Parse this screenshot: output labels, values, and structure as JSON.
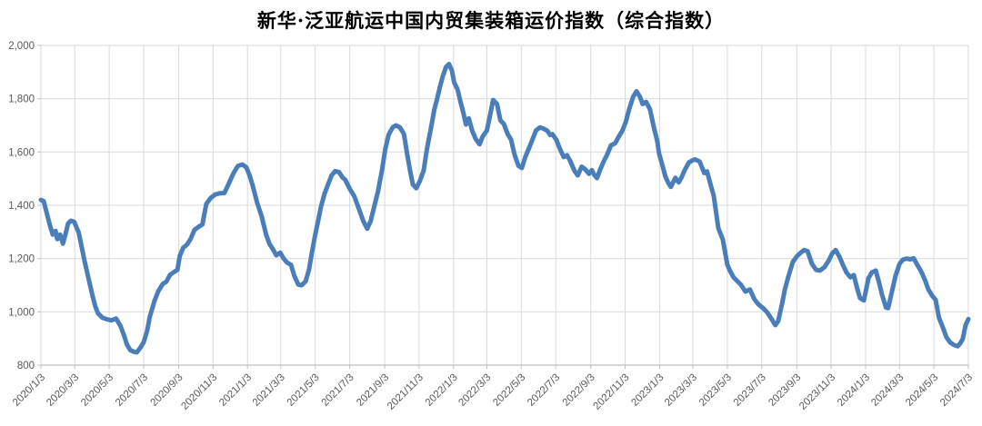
{
  "chart_data": {
    "type": "line",
    "title": "新华·泛亚航运中国内贸集装箱运价指数（综合指数）",
    "xlabel": "",
    "ylabel": "",
    "ylim": [
      800,
      2000
    ],
    "grid": true,
    "legend": "none",
    "line_color": "#4a7ebb",
    "gridline_color": "#d9d9d9",
    "axis_label_color": "#595959",
    "y_ticks": [
      {
        "value": 800,
        "label": "800"
      },
      {
        "value": 1000,
        "label": "1,000"
      },
      {
        "value": 1200,
        "label": "1,200"
      },
      {
        "value": 1400,
        "label": "1,400"
      },
      {
        "value": 1600,
        "label": "1,600"
      },
      {
        "value": 1800,
        "label": "1,800"
      },
      {
        "value": 2000,
        "label": "2,000"
      }
    ],
    "x_tick_labels": [
      "2020/1/3",
      "2020/3/3",
      "2020/5/3",
      "2020/7/3",
      "2020/9/3",
      "2020/11/3",
      "2021/1/3",
      "2021/3/3",
      "2021/5/3",
      "2021/7/3",
      "2021/9/3",
      "2021/11/3",
      "2022/1/3",
      "2022/3/3",
      "2022/5/3",
      "2022/7/3",
      "2022/9/3",
      "2022/11/3",
      "2023/1/3",
      "2023/3/3",
      "2023/5/3",
      "2023/7/3",
      "2023/9/3",
      "2023/11/3",
      "2024/1/3",
      "2024/3/3",
      "2024/5/3",
      "2024/7/3"
    ],
    "series": [
      {
        "color": "#4a7ebb",
        "points": [
          [
            "2020-01-03",
            1420
          ],
          [
            "2020-01-08",
            1415
          ],
          [
            "2020-01-14",
            1366
          ],
          [
            "2020-01-19",
            1325
          ],
          [
            "2020-01-24",
            1290
          ],
          [
            "2020-01-29",
            1304
          ],
          [
            "2020-02-01",
            1273
          ],
          [
            "2020-02-06",
            1290
          ],
          [
            "2020-02-11",
            1256
          ],
          [
            "2020-02-16",
            1295
          ],
          [
            "2020-02-20",
            1331
          ],
          [
            "2020-02-25",
            1342
          ],
          [
            "2020-03-02",
            1338
          ],
          [
            "2020-03-10",
            1297
          ],
          [
            "2020-03-15",
            1246
          ],
          [
            "2020-03-20",
            1194
          ],
          [
            "2020-03-28",
            1119
          ],
          [
            "2020-04-03",
            1064
          ],
          [
            "2020-04-08",
            1023
          ],
          [
            "2020-04-13",
            995
          ],
          [
            "2020-04-21",
            978
          ],
          [
            "2020-04-29",
            972
          ],
          [
            "2020-05-07",
            968
          ],
          [
            "2020-05-15",
            975
          ],
          [
            "2020-05-23",
            947
          ],
          [
            "2020-05-29",
            913
          ],
          [
            "2020-06-03",
            879
          ],
          [
            "2020-06-09",
            857
          ],
          [
            "2020-06-16",
            850
          ],
          [
            "2020-06-21",
            848
          ],
          [
            "2020-06-27",
            865
          ],
          [
            "2020-07-03",
            886
          ],
          [
            "2020-07-09",
            927
          ],
          [
            "2020-07-14",
            982
          ],
          [
            "2020-07-22",
            1040
          ],
          [
            "2020-07-29",
            1078
          ],
          [
            "2020-08-06",
            1105
          ],
          [
            "2020-08-12",
            1113
          ],
          [
            "2020-08-19",
            1140
          ],
          [
            "2020-08-25",
            1148
          ],
          [
            "2020-09-01",
            1158
          ],
          [
            "2020-09-05",
            1210
          ],
          [
            "2020-09-11",
            1240
          ],
          [
            "2020-09-18",
            1253
          ],
          [
            "2020-09-24",
            1273
          ],
          [
            "2020-10-01",
            1308
          ],
          [
            "2020-10-09",
            1320
          ],
          [
            "2020-10-15",
            1328
          ],
          [
            "2020-10-22",
            1405
          ],
          [
            "2020-10-30",
            1428
          ],
          [
            "2020-11-07",
            1441
          ],
          [
            "2020-11-15",
            1445
          ],
          [
            "2020-11-23",
            1446
          ],
          [
            "2020-12-01",
            1482
          ],
          [
            "2020-12-09",
            1520
          ],
          [
            "2020-12-17",
            1548
          ],
          [
            "2020-12-25",
            1553
          ],
          [
            "2021-01-01",
            1542
          ],
          [
            "2021-01-07",
            1510
          ],
          [
            "2021-01-12",
            1475
          ],
          [
            "2021-01-20",
            1410
          ],
          [
            "2021-01-28",
            1359
          ],
          [
            "2021-02-05",
            1290
          ],
          [
            "2021-02-11",
            1255
          ],
          [
            "2021-02-17",
            1235
          ],
          [
            "2021-02-23",
            1212
          ],
          [
            "2021-03-02",
            1222
          ],
          [
            "2021-03-08",
            1200
          ],
          [
            "2021-03-14",
            1185
          ],
          [
            "2021-03-21",
            1177
          ],
          [
            "2021-03-27",
            1135
          ],
          [
            "2021-04-03",
            1102
          ],
          [
            "2021-04-09",
            1100
          ],
          [
            "2021-04-16",
            1115
          ],
          [
            "2021-04-22",
            1160
          ],
          [
            "2021-04-27",
            1222
          ],
          [
            "2021-05-03",
            1290
          ],
          [
            "2021-05-08",
            1340
          ],
          [
            "2021-05-13",
            1393
          ],
          [
            "2021-05-19",
            1440
          ],
          [
            "2021-05-26",
            1480
          ],
          [
            "2021-06-01",
            1512
          ],
          [
            "2021-06-07",
            1528
          ],
          [
            "2021-06-14",
            1525
          ],
          [
            "2021-06-20",
            1505
          ],
          [
            "2021-06-25",
            1496
          ],
          [
            "2021-07-03",
            1462
          ],
          [
            "2021-07-11",
            1434
          ],
          [
            "2021-07-19",
            1389
          ],
          [
            "2021-07-27",
            1341
          ],
          [
            "2021-08-03",
            1312
          ],
          [
            "2021-08-09",
            1340
          ],
          [
            "2021-08-16",
            1400
          ],
          [
            "2021-08-22",
            1450
          ],
          [
            "2021-08-29",
            1530
          ],
          [
            "2021-09-04",
            1610
          ],
          [
            "2021-09-10",
            1665
          ],
          [
            "2021-09-17",
            1692
          ],
          [
            "2021-09-23",
            1700
          ],
          [
            "2021-09-30",
            1692
          ],
          [
            "2021-10-07",
            1668
          ],
          [
            "2021-10-13",
            1590
          ],
          [
            "2021-10-18",
            1530
          ],
          [
            "2021-10-23",
            1478
          ],
          [
            "2021-10-29",
            1464
          ],
          [
            "2021-11-04",
            1490
          ],
          [
            "2021-11-11",
            1530
          ],
          [
            "2021-11-17",
            1612
          ],
          [
            "2021-11-24",
            1690
          ],
          [
            "2021-11-30",
            1760
          ],
          [
            "2021-12-05",
            1800
          ],
          [
            "2021-12-10",
            1845
          ],
          [
            "2021-12-15",
            1885
          ],
          [
            "2021-12-21",
            1920
          ],
          [
            "2021-12-26",
            1930
          ],
          [
            "2021-12-31",
            1906
          ],
          [
            "2022-01-04",
            1862
          ],
          [
            "2022-01-10",
            1835
          ],
          [
            "2022-01-15",
            1790
          ],
          [
            "2022-01-20",
            1750
          ],
          [
            "2022-01-25",
            1703
          ],
          [
            "2022-01-30",
            1726
          ],
          [
            "2022-02-05",
            1680
          ],
          [
            "2022-02-11",
            1650
          ],
          [
            "2022-02-18",
            1629
          ],
          [
            "2022-02-24",
            1660
          ],
          [
            "2022-03-03",
            1680
          ],
          [
            "2022-03-08",
            1730
          ],
          [
            "2022-03-14",
            1795
          ],
          [
            "2022-03-21",
            1780
          ],
          [
            "2022-03-27",
            1719
          ],
          [
            "2022-04-02",
            1705
          ],
          [
            "2022-04-09",
            1667
          ],
          [
            "2022-04-15",
            1646
          ],
          [
            "2022-04-21",
            1590
          ],
          [
            "2022-04-28",
            1548
          ],
          [
            "2022-05-04",
            1540
          ],
          [
            "2022-05-10",
            1581
          ],
          [
            "2022-05-17",
            1616
          ],
          [
            "2022-05-23",
            1648
          ],
          [
            "2022-05-29",
            1681
          ],
          [
            "2022-06-05",
            1692
          ],
          [
            "2022-06-11",
            1688
          ],
          [
            "2022-06-18",
            1680
          ],
          [
            "2022-06-23",
            1664
          ],
          [
            "2022-06-27",
            1667
          ],
          [
            "2022-07-04",
            1646
          ],
          [
            "2022-07-10",
            1614
          ],
          [
            "2022-07-17",
            1581
          ],
          [
            "2022-07-23",
            1588
          ],
          [
            "2022-07-29",
            1565
          ],
          [
            "2022-08-05",
            1530
          ],
          [
            "2022-08-11",
            1512
          ],
          [
            "2022-08-18",
            1545
          ],
          [
            "2022-08-24",
            1535
          ],
          [
            "2022-08-31",
            1518
          ],
          [
            "2022-09-05",
            1532
          ],
          [
            "2022-09-09",
            1515
          ],
          [
            "2022-09-14",
            1502
          ],
          [
            "2022-09-20",
            1535
          ],
          [
            "2022-09-26",
            1565
          ],
          [
            "2022-10-02",
            1590
          ],
          [
            "2022-10-09",
            1625
          ],
          [
            "2022-10-16",
            1632
          ],
          [
            "2022-10-22",
            1655
          ],
          [
            "2022-10-29",
            1680
          ],
          [
            "2022-11-04",
            1712
          ],
          [
            "2022-11-10",
            1760
          ],
          [
            "2022-11-17",
            1806
          ],
          [
            "2022-11-23",
            1828
          ],
          [
            "2022-11-29",
            1808
          ],
          [
            "2022-12-04",
            1780
          ],
          [
            "2022-12-10",
            1788
          ],
          [
            "2022-12-17",
            1760
          ],
          [
            "2022-12-23",
            1700
          ],
          [
            "2022-12-30",
            1640
          ],
          [
            "2023-01-02",
            1595
          ],
          [
            "2023-01-08",
            1550
          ],
          [
            "2023-01-13",
            1510
          ],
          [
            "2023-01-18",
            1486
          ],
          [
            "2023-01-23",
            1469
          ],
          [
            "2023-01-31",
            1503
          ],
          [
            "2023-02-06",
            1486
          ],
          [
            "2023-02-11",
            1505
          ],
          [
            "2023-02-16",
            1530
          ],
          [
            "2023-02-24",
            1561
          ],
          [
            "2023-03-02",
            1568
          ],
          [
            "2023-03-07",
            1572
          ],
          [
            "2023-03-15",
            1564
          ],
          [
            "2023-03-23",
            1521
          ],
          [
            "2023-03-28",
            1527
          ],
          [
            "2023-04-03",
            1480
          ],
          [
            "2023-04-09",
            1435
          ],
          [
            "2023-04-17",
            1314
          ],
          [
            "2023-04-25",
            1272
          ],
          [
            "2023-05-03",
            1177
          ],
          [
            "2023-05-08",
            1153
          ],
          [
            "2023-05-14",
            1130
          ],
          [
            "2023-05-19",
            1119
          ],
          [
            "2023-05-27",
            1102
          ],
          [
            "2023-06-04",
            1076
          ],
          [
            "2023-06-12",
            1084
          ],
          [
            "2023-06-20",
            1047
          ],
          [
            "2023-06-27",
            1028
          ],
          [
            "2023-07-06",
            1013
          ],
          [
            "2023-07-13",
            997
          ],
          [
            "2023-07-20",
            975
          ],
          [
            "2023-07-27",
            950
          ],
          [
            "2023-08-01",
            965
          ],
          [
            "2023-08-08",
            1030
          ],
          [
            "2023-08-13",
            1084
          ],
          [
            "2023-08-19",
            1132
          ],
          [
            "2023-08-27",
            1187
          ],
          [
            "2023-09-03",
            1208
          ],
          [
            "2023-09-10",
            1222
          ],
          [
            "2023-09-16",
            1232
          ],
          [
            "2023-09-22",
            1228
          ],
          [
            "2023-09-30",
            1180
          ],
          [
            "2023-10-07",
            1158
          ],
          [
            "2023-10-14",
            1155
          ],
          [
            "2023-10-22",
            1168
          ],
          [
            "2023-10-29",
            1190
          ],
          [
            "2023-11-05",
            1220
          ],
          [
            "2023-11-11",
            1232
          ],
          [
            "2023-11-18",
            1205
          ],
          [
            "2023-11-24",
            1175
          ],
          [
            "2023-11-30",
            1148
          ],
          [
            "2023-12-07",
            1130
          ],
          [
            "2023-12-13",
            1138
          ],
          [
            "2023-12-19",
            1088
          ],
          [
            "2023-12-24",
            1052
          ],
          [
            "2023-12-31",
            1043
          ],
          [
            "2024-01-08",
            1126
          ],
          [
            "2024-01-14",
            1148
          ],
          [
            "2024-01-21",
            1155
          ],
          [
            "2024-01-27",
            1109
          ],
          [
            "2024-02-01",
            1065
          ],
          [
            "2024-02-08",
            1016
          ],
          [
            "2024-02-12",
            1014
          ],
          [
            "2024-02-19",
            1080
          ],
          [
            "2024-02-25",
            1135
          ],
          [
            "2024-03-03",
            1180
          ],
          [
            "2024-03-09",
            1196
          ],
          [
            "2024-03-16",
            1200
          ],
          [
            "2024-03-22",
            1197
          ],
          [
            "2024-03-28",
            1201
          ],
          [
            "2024-04-04",
            1175
          ],
          [
            "2024-04-10",
            1153
          ],
          [
            "2024-04-17",
            1120
          ],
          [
            "2024-04-23",
            1085
          ],
          [
            "2024-04-30",
            1060
          ],
          [
            "2024-05-06",
            1045
          ],
          [
            "2024-05-12",
            978
          ],
          [
            "2024-05-19",
            940
          ],
          [
            "2024-05-25",
            905
          ],
          [
            "2024-06-01",
            885
          ],
          [
            "2024-06-07",
            876
          ],
          [
            "2024-06-14",
            871
          ],
          [
            "2024-06-18",
            880
          ],
          [
            "2024-06-23",
            898
          ],
          [
            "2024-06-28",
            950
          ],
          [
            "2024-07-03",
            973
          ]
        ]
      }
    ]
  }
}
